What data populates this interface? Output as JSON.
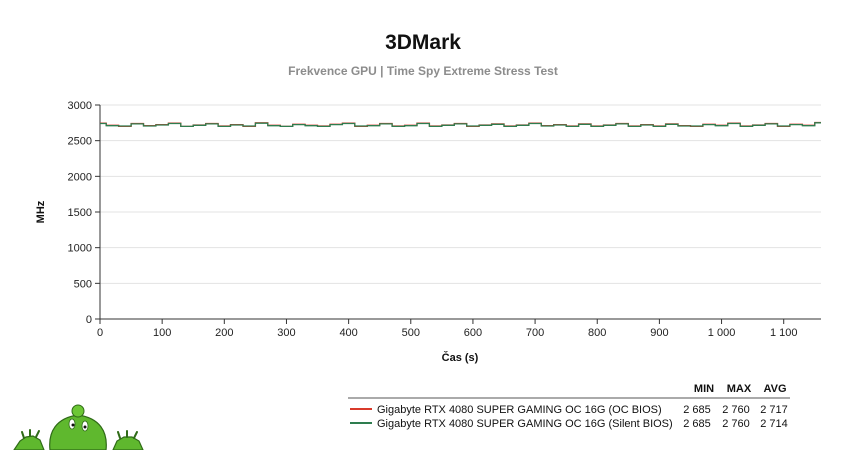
{
  "chart_data": {
    "type": "line",
    "title": "3DMark",
    "subtitle": "Frekvence GPU | Time Spy Extreme Stress Test",
    "xlabel": "Čas (s)",
    "ylabel": "MHz",
    "xlim": [
      0,
      1160
    ],
    "ylim": [
      0,
      3000
    ],
    "x_ticks": [
      0,
      100,
      200,
      300,
      400,
      500,
      600,
      700,
      800,
      900,
      1000,
      1100
    ],
    "x_tick_labels": [
      "0",
      "100",
      "200",
      "300",
      "400",
      "500",
      "600",
      "700",
      "800",
      "900",
      "1 000",
      "1 100"
    ],
    "y_ticks": [
      0,
      500,
      1000,
      1500,
      2000,
      2500,
      3000
    ],
    "y_tick_labels": [
      "0",
      "500",
      "1000",
      "1500",
      "2000",
      "2500",
      "3000"
    ],
    "grid": "horizontal",
    "legend_placement": "bottom-right",
    "stat_headers": [
      "MIN",
      "MAX",
      "AVG"
    ],
    "x": [
      0,
      20,
      40,
      60,
      80,
      100,
      120,
      140,
      160,
      180,
      200,
      220,
      240,
      260,
      280,
      300,
      320,
      340,
      360,
      380,
      400,
      420,
      440,
      460,
      480,
      500,
      520,
      540,
      560,
      580,
      600,
      620,
      640,
      660,
      680,
      700,
      720,
      740,
      760,
      780,
      800,
      820,
      840,
      860,
      880,
      900,
      920,
      940,
      960,
      980,
      1000,
      1020,
      1040,
      1060,
      1080,
      1100,
      1120,
      1140,
      1160
    ],
    "series": [
      {
        "name": "Gigabyte RTX 4080 SUPER GAMING OC 16G (OC BIOS)",
        "color": "#d93a2b",
        "stats": [
          "2 685",
          "2 760",
          "2 717"
        ],
        "values": [
          2745,
          2715,
          2700,
          2740,
          2710,
          2725,
          2745,
          2700,
          2720,
          2740,
          2705,
          2725,
          2700,
          2750,
          2715,
          2700,
          2730,
          2715,
          2705,
          2730,
          2745,
          2700,
          2715,
          2740,
          2705,
          2715,
          2745,
          2705,
          2720,
          2740,
          2700,
          2720,
          2735,
          2705,
          2720,
          2745,
          2710,
          2725,
          2705,
          2735,
          2705,
          2720,
          2740,
          2705,
          2725,
          2705,
          2735,
          2710,
          2700,
          2730,
          2715,
          2745,
          2705,
          2720,
          2740,
          2700,
          2730,
          2715,
          2755
        ]
      },
      {
        "name": "Gigabyte RTX 4080 SUPER GAMING OC 16G (Silent BIOS)",
        "color": "#2e7d4f",
        "stats": [
          "2 685",
          "2 760",
          "2 714"
        ],
        "values": [
          2740,
          2710,
          2705,
          2735,
          2705,
          2720,
          2740,
          2700,
          2715,
          2735,
          2700,
          2720,
          2705,
          2745,
          2710,
          2700,
          2725,
          2710,
          2700,
          2725,
          2740,
          2705,
          2710,
          2735,
          2700,
          2710,
          2740,
          2700,
          2715,
          2735,
          2705,
          2715,
          2730,
          2700,
          2715,
          2740,
          2705,
          2720,
          2700,
          2730,
          2700,
          2715,
          2735,
          2700,
          2720,
          2700,
          2730,
          2705,
          2705,
          2725,
          2710,
          2740,
          2700,
          2715,
          2735,
          2705,
          2725,
          2710,
          2750
        ]
      }
    ]
  },
  "mascot": {
    "icon": "green-mascot-icon",
    "color": "#5fb82e"
  }
}
